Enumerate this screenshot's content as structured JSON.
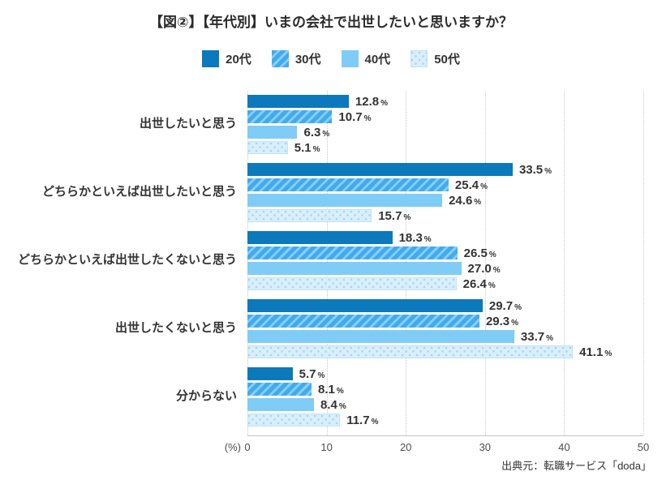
{
  "title": "【図②】【年代別】いまの会社で出世したいと思いますか？",
  "source": "出典元：転職サービス「doda」",
  "colors": {
    "series_20s": "#0b79bc",
    "series_30s_base": "#41aaf0",
    "series_30s_stripe": "#85cef9",
    "series_40s": "#7fccf7",
    "series_50s_bg": "#daeefc",
    "series_50s_dot": "#9ed8f8",
    "series_50s_border": "#bfe3f9",
    "gridline": "#c9c9c9",
    "text": "#333333"
  },
  "chart_data": {
    "type": "bar",
    "orientation": "horizontal",
    "title": "【図②】【年代別】いまの会社で出世したいと思いますか？",
    "categories": [
      "出世したいと思う",
      "どちらかといえば出世したいと思う",
      "どちらかといえば出世したくないと思う",
      "出世したくないと思う",
      "分からない"
    ],
    "series": [
      {
        "id": "20s",
        "name": "20代",
        "pattern": "solid",
        "color": "#0b79bc",
        "values": [
          12.8,
          33.5,
          18.3,
          29.7,
          5.7
        ],
        "value_labels": [
          "12.8",
          "33.5",
          "18.3",
          "29.7",
          "5.7"
        ]
      },
      {
        "id": "30s",
        "name": "30代",
        "pattern": "diagonal-stripes",
        "color": "#41aaf0",
        "stripe_color": "#85cef9",
        "values": [
          10.7,
          25.4,
          26.5,
          29.3,
          8.1
        ],
        "value_labels": [
          "10.7",
          "25.4",
          "26.5",
          "29.3",
          "8.1"
        ]
      },
      {
        "id": "40s",
        "name": "40代",
        "pattern": "solid",
        "color": "#7fccf7",
        "values": [
          6.3,
          24.6,
          27.0,
          33.7,
          8.4
        ],
        "value_labels": [
          "6.3",
          "24.6",
          "27.0",
          "33.7",
          "8.4"
        ]
      },
      {
        "id": "50s",
        "name": "50代",
        "pattern": "dots",
        "color": "#daeefc",
        "dot_color": "#9ed8f8",
        "border_color": "#bfe3f9",
        "values": [
          5.1,
          15.7,
          26.4,
          41.1,
          11.7
        ],
        "value_labels": [
          "5.1",
          "15.7",
          "26.4",
          "41.1",
          "11.7"
        ]
      }
    ],
    "value_suffix": "%",
    "xlim": [
      0,
      50
    ],
    "x_ticks": [
      0,
      10,
      20,
      30,
      40,
      50
    ],
    "x_axis_unit": "(%)",
    "grid": "dotted-vertical",
    "legend_position": "top"
  }
}
